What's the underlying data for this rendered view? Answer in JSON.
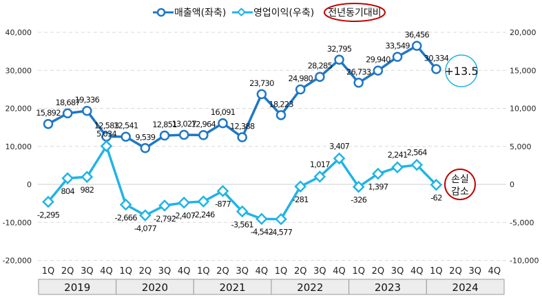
{
  "chart_data": {
    "type": "line",
    "legend": {
      "revenue": "매출액(좌축)",
      "profit": "영업이익(우축)",
      "yoy": "전년동기대비"
    },
    "quarters": [
      "1Q",
      "2Q",
      "3Q",
      "4Q"
    ],
    "years": [
      "2019",
      "2020",
      "2021",
      "2022",
      "2023",
      "2024"
    ],
    "left_axis": {
      "min": -20000,
      "max": 40000,
      "ticks": [
        "-20,000",
        "-10,000",
        "0",
        "10,000",
        "20,000",
        "30,000",
        "40,000"
      ]
    },
    "right_axis": {
      "min": -10000,
      "max": 20000,
      "ticks": [
        "-10,000",
        "-5,000",
        "0",
        "5,000",
        "10,000",
        "15,000",
        "20,000"
      ]
    },
    "series": [
      {
        "name": "매출액(좌축)",
        "axis": "left",
        "color": "#1f77c4",
        "values": [
          15892,
          18687,
          19336,
          12583,
          12541,
          9539,
          12851,
          13027,
          12964,
          16091,
          12388,
          23730,
          18223,
          24980,
          28285,
          32795,
          26733,
          29940,
          33549,
          36456,
          30334
        ],
        "labels": [
          "15,892",
          "18,687",
          "19,336",
          "12,583",
          "12,541",
          "9,539",
          "12,851",
          "13,027",
          "12,964",
          "16,091",
          "12,388",
          "23,730",
          "18,223",
          "24,980",
          "28,285",
          "32,795",
          "26,733",
          "29,940",
          "33,549",
          "36,456",
          "30,334"
        ]
      },
      {
        "name": "영업이익(우축)",
        "axis": "right",
        "color": "#1fb4e6",
        "values": [
          -2295,
          804,
          982,
          5034,
          -2666,
          -4077,
          -2792,
          -2407,
          -2246,
          -877,
          -3561,
          -4542,
          -4577,
          -281,
          1017,
          3407,
          -326,
          1397,
          2241,
          2564,
          -62
        ],
        "labels": [
          "-2,295",
          "804",
          "982",
          "5,034",
          "-2,666",
          "-4,077",
          "-2,792",
          "-2,407",
          "-2,246",
          "-877",
          "-3,561",
          "-4,542",
          "-4,577",
          "-281",
          "1,017",
          "3,407",
          "-326",
          "1,397",
          "2,241",
          "2,564",
          "-62"
        ]
      }
    ],
    "annotations": {
      "revenue_yoy": "+13.5",
      "profit_yoy": [
        "손실",
        "감소"
      ]
    }
  }
}
